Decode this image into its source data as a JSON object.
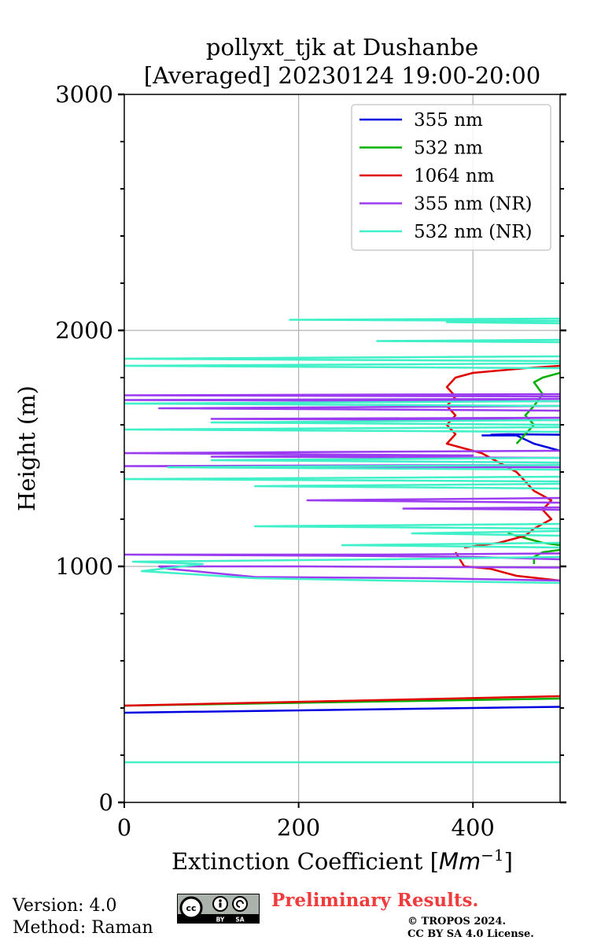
{
  "title_line1": "pollyxt_tjk at Dushanbe",
  "title_line2": "[Averaged] 20230124 19:00-20:00",
  "footer": {
    "version": "Version: 4.0",
    "method": "Method: Raman",
    "preliminary": "Preliminary Results.",
    "copyright_line1": "© TROPOS 2024.",
    "copyright_line2": "CC BY SA 4.0 License.",
    "license_badge": {
      "main": "cc",
      "sub_left": "BY",
      "sub_right": "SA"
    }
  },
  "chart_data": {
    "type": "line",
    "xlabel": "Extinction Coefficient [Mm⁻¹]",
    "ylabel": "Height (m)",
    "xlim": [
      0,
      500
    ],
    "ylim": [
      0,
      3000
    ],
    "x_ticks": [
      "0",
      "200",
      "400"
    ],
    "x_tick_values": [
      0,
      200,
      400
    ],
    "y_ticks": [
      "0",
      "1000",
      "2000",
      "3000"
    ],
    "y_tick_values": [
      0,
      1000,
      2000,
      3000
    ],
    "grid": true,
    "legend_position": "top-right",
    "series": [
      {
        "name": "355 nm",
        "color": "#0000e0",
        "points": [
          [
            0,
            380
          ],
          [
            500,
            405
          ],
          null,
          [
            410,
            1555
          ],
          [
            450,
            1555
          ],
          [
            470,
            1520
          ],
          [
            490,
            1500
          ],
          [
            500,
            1490
          ],
          null,
          [
            500,
            1558
          ],
          [
            440,
            1560
          ],
          [
            420,
            1558
          ]
        ]
      },
      {
        "name": "532 nm",
        "color": "#00b000",
        "points": [
          [
            0,
            410
          ],
          [
            500,
            440
          ],
          null,
          [
            470,
            1010
          ],
          [
            470,
            1040
          ],
          [
            480,
            1060
          ],
          [
            500,
            1070
          ],
          null,
          [
            500,
            1090
          ],
          [
            480,
            1100
          ],
          [
            460,
            1120
          ],
          [
            440,
            1140
          ],
          null,
          [
            450,
            1520
          ],
          [
            460,
            1560
          ],
          [
            470,
            1600
          ],
          [
            460,
            1640
          ],
          [
            470,
            1680
          ],
          [
            480,
            1730
          ],
          [
            470,
            1780
          ],
          [
            480,
            1800
          ],
          [
            500,
            1820
          ]
        ]
      },
      {
        "name": "1064 nm",
        "color": "#e00000",
        "points": [
          [
            0,
            410
          ],
          [
            500,
            450
          ],
          null,
          [
            380,
            1060
          ],
          [
            390,
            1000
          ],
          [
            420,
            990
          ],
          [
            450,
            960
          ],
          [
            500,
            940
          ],
          null,
          [
            390,
            1080
          ],
          [
            430,
            1100
          ],
          [
            460,
            1130
          ],
          [
            470,
            1160
          ],
          [
            490,
            1200
          ],
          [
            480,
            1240
          ],
          [
            490,
            1280
          ],
          [
            470,
            1320
          ],
          [
            460,
            1360
          ],
          [
            450,
            1400
          ],
          [
            430,
            1440
          ],
          [
            410,
            1480
          ],
          [
            390,
            1500
          ],
          [
            370,
            1520
          ],
          [
            380,
            1560
          ],
          [
            370,
            1600
          ],
          [
            380,
            1640
          ],
          [
            370,
            1680
          ],
          [
            380,
            1720
          ],
          [
            370,
            1760
          ],
          [
            380,
            1800
          ],
          [
            400,
            1820
          ],
          [
            460,
            1840
          ],
          [
            500,
            1850
          ]
        ]
      },
      {
        "name": "355 nm (NR)",
        "color": "#9b3cf0",
        "points": [
          [
            500,
            940
          ],
          [
            350,
            950
          ],
          [
            150,
            955
          ],
          [
            80,
            980
          ],
          [
            50,
            990
          ],
          [
            40,
            1000
          ],
          [
            200,
            1000
          ],
          [
            500,
            995
          ],
          null,
          [
            500,
            1030
          ],
          [
            400,
            1040
          ],
          [
            250,
            1045
          ],
          [
            0,
            1050
          ],
          [
            300,
            1050
          ],
          [
            500,
            1055
          ],
          null,
          [
            500,
            1240
          ],
          [
            320,
            1245
          ],
          [
            500,
            1250
          ],
          null,
          [
            500,
            1270
          ],
          [
            210,
            1280
          ],
          [
            500,
            1290
          ],
          null,
          [
            500,
            1420
          ],
          [
            0,
            1425
          ],
          [
            500,
            1430
          ],
          null,
          [
            500,
            1460
          ],
          [
            100,
            1465
          ],
          [
            400,
            1470
          ],
          [
            0,
            1480
          ],
          [
            500,
            1490
          ],
          null,
          [
            500,
            1620
          ],
          [
            100,
            1625
          ],
          [
            500,
            1630
          ],
          null,
          [
            500,
            1660
          ],
          [
            40,
            1670
          ],
          [
            500,
            1680
          ],
          null,
          [
            500,
            1700
          ],
          [
            0,
            1705
          ],
          [
            500,
            1710
          ],
          null,
          [
            500,
            1720
          ],
          [
            0,
            1725
          ],
          [
            500,
            1730
          ]
        ]
      },
      {
        "name": "532 nm (NR)",
        "color": "#40f0c8",
        "points": [
          [
            0,
            170
          ],
          [
            500,
            170
          ],
          null,
          [
            500,
            930
          ],
          [
            300,
            940
          ],
          [
            150,
            950
          ],
          [
            20,
            980
          ],
          [
            90,
            1010
          ],
          [
            10,
            1020
          ],
          [
            300,
            1030
          ],
          [
            500,
            1040
          ],
          null,
          [
            500,
            1080
          ],
          [
            250,
            1090
          ],
          [
            500,
            1100
          ],
          null,
          [
            500,
            1130
          ],
          [
            330,
            1140
          ],
          [
            500,
            1150
          ],
          null,
          [
            500,
            1160
          ],
          [
            150,
            1170
          ],
          [
            500,
            1180
          ],
          null,
          [
            500,
            1330
          ],
          [
            150,
            1340
          ],
          [
            500,
            1350
          ],
          null,
          [
            500,
            1360
          ],
          [
            0,
            1370
          ],
          [
            500,
            1380
          ],
          null,
          [
            500,
            1410
          ],
          [
            50,
            1420
          ],
          [
            500,
            1430
          ],
          null,
          [
            500,
            1440
          ],
          [
            100,
            1450
          ],
          [
            500,
            1460
          ],
          null,
          [
            500,
            1570
          ],
          [
            0,
            1580
          ],
          [
            500,
            1590
          ],
          null,
          [
            500,
            1600
          ],
          [
            100,
            1610
          ],
          [
            500,
            1620
          ],
          null,
          [
            500,
            1680
          ],
          [
            0,
            1690
          ],
          [
            500,
            1700
          ],
          null,
          [
            500,
            1840
          ],
          [
            0,
            1850
          ],
          [
            500,
            1860
          ],
          null,
          [
            500,
            1870
          ],
          [
            0,
            1880
          ],
          [
            500,
            1890
          ],
          null,
          [
            500,
            1950
          ],
          [
            290,
            1955
          ],
          [
            500,
            1960
          ],
          null,
          [
            500,
            2030
          ],
          [
            370,
            2035
          ],
          [
            500,
            2040
          ],
          null,
          [
            500,
            2040
          ],
          [
            190,
            2045
          ],
          [
            500,
            2050
          ]
        ]
      }
    ]
  }
}
